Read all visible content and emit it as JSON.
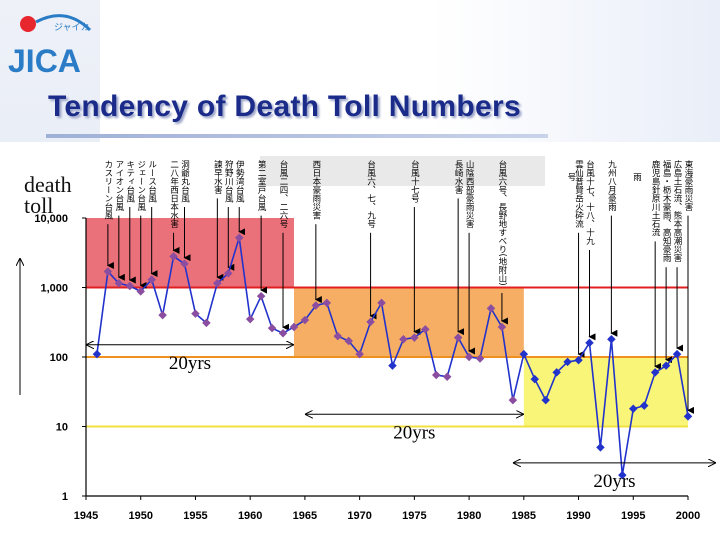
{
  "header": {
    "logo_text": "JICA",
    "logo_katakana": "ジャイカ",
    "title": "Tendency of Death Toll Numbers"
  },
  "colors": {
    "title": "#1a2b8a",
    "line": "#2233cc",
    "marker_blue": "#2233cc",
    "marker_purple": "#8a4da0",
    "zone_red": "#e8606a",
    "zone_orange": "#f4a552",
    "zone_yellow": "#f8f46a",
    "ref_1000": "#e02020",
    "ref_100": "#f09020",
    "ref_10": "#f0e040"
  },
  "chart_data": {
    "type": "line",
    "ylabel_lines": [
      "death",
      "toll"
    ],
    "y_scale": "log",
    "ylim": [
      1,
      10000
    ],
    "xlim": [
      1945,
      2000
    ],
    "y_ticks": [
      {
        "value": 10000,
        "label": "10,000"
      },
      {
        "value": 1000,
        "label": "1,000"
      },
      {
        "value": 100,
        "label": "100"
      },
      {
        "value": 10,
        "label": "10"
      },
      {
        "value": 1,
        "label": "1"
      }
    ],
    "x_ticks": [
      1945,
      1950,
      1955,
      1960,
      1965,
      1970,
      1975,
      1980,
      1985,
      1990,
      1995,
      2000
    ],
    "reference_lines": [
      1000,
      100,
      10
    ],
    "series": [
      {
        "x": [
          1946,
          1947,
          1948,
          1949,
          1950,
          1951,
          1952,
          1953,
          1954,
          1955,
          1956,
          1957,
          1958,
          1959,
          1960,
          1961,
          1962,
          1963,
          1964,
          1965,
          1966,
          1967,
          1968,
          1969,
          1970,
          1971,
          1972,
          1973,
          1974,
          1975,
          1976,
          1977,
          1978,
          1979,
          1980,
          1981,
          1982,
          1983,
          1984,
          1985,
          1986,
          1987,
          1988,
          1989,
          1990,
          1991,
          1992,
          1993,
          1994,
          1995,
          1996,
          1997,
          1998,
          1999,
          2000
        ],
        "y": [
          110,
          1700,
          1150,
          1050,
          880,
          1300,
          400,
          2800,
          2200,
          420,
          310,
          1150,
          1600,
          5200,
          350,
          750,
          260,
          220,
          270,
          340,
          550,
          600,
          200,
          170,
          110,
          320,
          600,
          75,
          180,
          190,
          250,
          55,
          52,
          190,
          100,
          95,
          500,
          270,
          24,
          110,
          48,
          24,
          60,
          85,
          90,
          160,
          5,
          180,
          2,
          18,
          20,
          60,
          75,
          110,
          14
        ]
      }
    ],
    "zones": [
      {
        "x": [
          1945,
          1964
        ],
        "y": [
          1000,
          10000
        ],
        "color": "#e8606a"
      },
      {
        "x": [
          1964,
          1985
        ],
        "y": [
          100,
          1000
        ],
        "color": "#f4a552"
      },
      {
        "x": [
          1985,
          2000
        ],
        "y": [
          10,
          100
        ],
        "color": "#f8f46a"
      }
    ],
    "spans": [
      {
        "label": "20yrs",
        "x": [
          1945,
          1964
        ],
        "y": 150
      },
      {
        "label": "20yrs",
        "x": [
          1965,
          1985
        ],
        "y": 15
      },
      {
        "label": "20yrs",
        "x": [
          1984,
          2003
        ],
        "y": 3
      }
    ],
    "annotations": [
      {
        "x": 1947,
        "text": "カスリーン台風"
      },
      {
        "x": 1948,
        "text": "アイオン台風"
      },
      {
        "x": 1949,
        "text": "キティ台風"
      },
      {
        "x": 1950,
        "text": "ジェーン台風"
      },
      {
        "x": 1951,
        "text": "ルース台風"
      },
      {
        "x": 1953,
        "text": "二八年西日本水害"
      },
      {
        "x": 1954,
        "text": "洞爺丸台風"
      },
      {
        "x": 1957,
        "text": "諫早水害"
      },
      {
        "x": 1958,
        "text": "狩野川台風"
      },
      {
        "x": 1959,
        "text": "伊勢湾台風"
      },
      {
        "x": 1961,
        "text": "第二室戸台風"
      },
      {
        "x": 1963,
        "text": "台風二四、二六号"
      },
      {
        "x": 1966,
        "text": "西日本豪雨災害"
      },
      {
        "x": 1971,
        "text": "台風六、七、九号"
      },
      {
        "x": 1975,
        "text": "台風十七号"
      },
      {
        "x": 1979,
        "text": "長崎水害"
      },
      {
        "x": 1980,
        "text": "山陰西部豪雨災害"
      },
      {
        "x": 1983,
        "text": "台風六号、長野地すべり(地附山)"
      },
      {
        "x": 1990,
        "text": "雲仙普賢岳火砕流"
      },
      {
        "x": 1991,
        "text": "台風十七、十八、十九"
      },
      {
        "x": 1993,
        "text": "九州八月豪雨"
      },
      {
        "x": 1997,
        "text": "鹿児島針原川土石流"
      },
      {
        "x": 1998,
        "text": "福島・栃木豪雨、高知豪雨"
      },
      {
        "x": 1999,
        "text": "広島土石流、熊本高潮災害"
      },
      {
        "x": 2000,
        "text": "東海豪雨災害"
      }
    ],
    "header_band_fragments": [
      {
        "x": 1989,
        "text": "号"
      },
      {
        "x": 1995,
        "text": "雨"
      }
    ]
  }
}
